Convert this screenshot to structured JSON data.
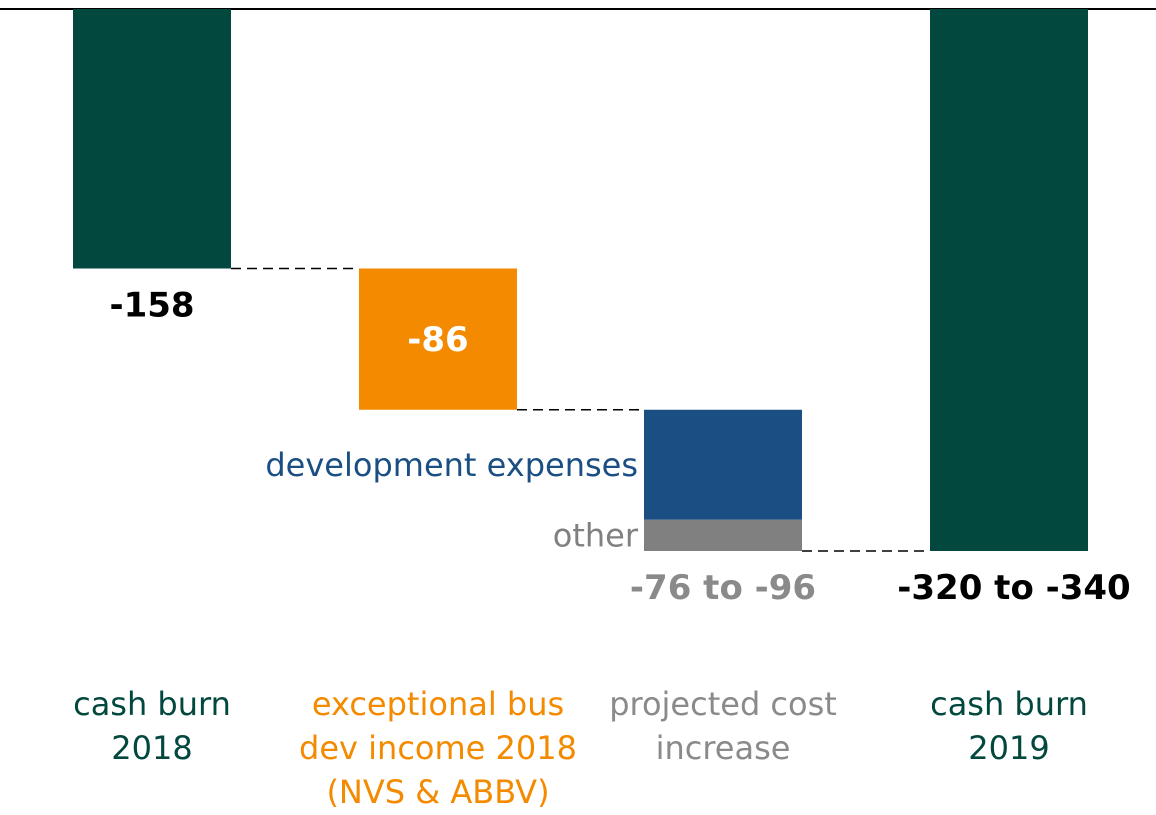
{
  "chart_data": {
    "type": "bar",
    "subtype": "waterfall",
    "categories": [
      "cash burn\n2018",
      "exceptional bus\ndev income 2018\n(NVS & ABBV)",
      "projected cost\nincrease",
      "cash burn\n2019"
    ],
    "bars": [
      {
        "category_index": 0,
        "kind": "total",
        "start": 0,
        "end": -158,
        "value_label": "-158",
        "color": "#03483e"
      },
      {
        "category_index": 1,
        "kind": "delta",
        "start": -158,
        "end": -244,
        "value_label": "-86",
        "color": "#f48a00"
      },
      {
        "category_index": 2,
        "kind": "delta",
        "start": -244,
        "end": -330,
        "value_label": "-76 to -96",
        "color": "#808080",
        "segments": [
          {
            "name": "development expenses",
            "start": -244,
            "end": -311,
            "color": "#1b4f84"
          },
          {
            "name": "other",
            "start": -311,
            "end": -330,
            "color": "#808080"
          }
        ]
      },
      {
        "category_index": 3,
        "kind": "total",
        "start": 0,
        "end": -330,
        "value_label": "-320 to -340",
        "color": "#03483e"
      }
    ],
    "category_colors": [
      "#03483e",
      "#f48a00",
      "#8a8a8a",
      "#03483e"
    ],
    "value_label_colors": [
      "#000000",
      "#ffffff",
      "#8a8a8a",
      "#000000"
    ],
    "ylim": [
      -330,
      0
    ],
    "grid": false,
    "connectors": "dashed"
  }
}
